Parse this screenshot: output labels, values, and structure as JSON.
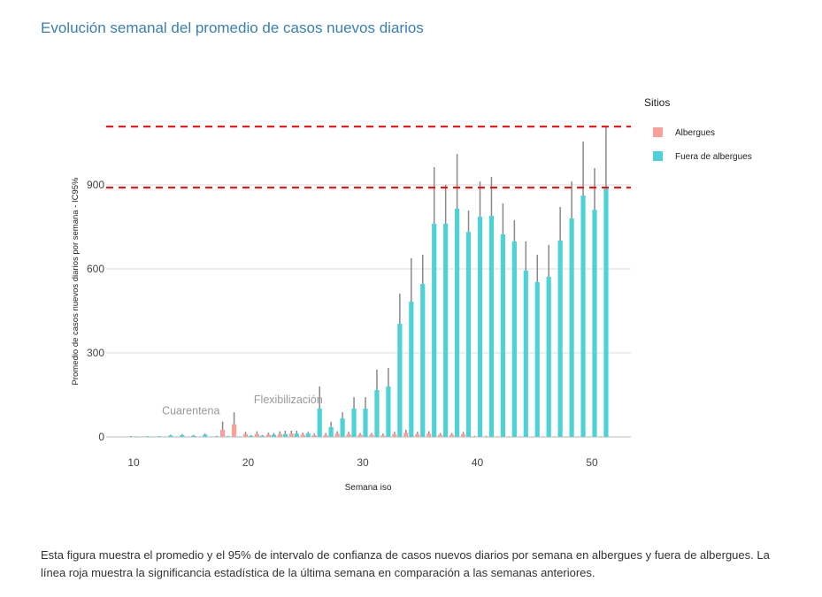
{
  "title": "Evolución semanal del promedio de casos nuevos diarios",
  "caption": "Esta figura muestra el promedio y el 95% de intervalo de confianza de casos nuevos diarios por semana en albergues y fuera de albergues. La línea roja muestra la significancia estadística de la última semana en comparación a las semanas anteriores.",
  "chart_data": {
    "type": "bar",
    "xlabel": "Semana iso",
    "ylabel": "Promedio de casos nuevos diarios por semana - IC95%",
    "xlim": [
      8,
      54
    ],
    "ylim": [
      0,
      1160
    ],
    "xticks": [
      10,
      20,
      30,
      40,
      50
    ],
    "yticks": [
      0,
      300,
      600,
      900
    ],
    "grid": true,
    "legend": {
      "title": "Sitios",
      "placement": "right"
    },
    "reference_lines": [
      1108,
      890
    ],
    "reference_line_color": "#ff0000",
    "annotations": [
      {
        "text": "Cuarentena",
        "x": 15,
        "y": 80
      },
      {
        "text": "Flexibilización",
        "x": 23.5,
        "y": 120
      }
    ],
    "x": [
      10,
      11,
      12,
      13,
      14,
      15,
      16,
      17,
      18,
      19,
      20,
      21,
      22,
      23,
      24,
      25,
      26,
      27,
      28,
      29,
      30,
      31,
      32,
      33,
      34,
      35,
      36,
      37,
      38,
      39,
      40,
      41,
      42,
      43,
      44,
      45,
      46,
      47,
      48,
      49,
      50,
      51
    ],
    "series": [
      {
        "name": "Albergues",
        "color": "#f8a09a",
        "values": [
          0,
          0,
          0,
          0,
          0,
          0,
          0,
          0,
          25,
          45,
          10,
          10,
          8,
          10,
          12,
          8,
          6,
          6,
          12,
          10,
          8,
          8,
          6,
          10,
          15,
          10,
          12,
          8,
          8,
          10,
          2,
          2,
          1,
          1,
          1,
          1,
          1,
          1,
          1,
          1,
          1,
          1
        ],
        "upper": [
          3,
          1,
          1,
          1,
          1,
          1,
          1,
          1,
          55,
          88,
          18,
          20,
          15,
          20,
          22,
          15,
          12,
          14,
          20,
          18,
          14,
          14,
          12,
          18,
          25,
          18,
          20,
          14,
          14,
          18,
          4,
          4,
          2,
          2,
          2,
          2,
          2,
          2,
          2,
          2,
          2,
          2
        ]
      },
      {
        "name": "Fuera de albergues",
        "color": "#4dd2d8",
        "values": [
          1,
          2,
          2,
          5,
          6,
          4,
          8,
          2,
          2,
          1,
          4,
          4,
          8,
          10,
          12,
          12,
          101,
          35,
          66,
          101,
          101,
          167,
          180,
          404,
          483,
          546,
          761,
          761,
          815,
          732,
          786,
          789,
          723,
          698,
          594,
          553,
          572,
          701,
          780,
          862,
          811,
          887
        ],
        "upper": [
          2,
          3,
          3,
          8,
          10,
          7,
          12,
          4,
          4,
          2,
          7,
          7,
          14,
          22,
          22,
          18,
          180,
          54,
          88,
          142,
          142,
          240,
          246,
          512,
          638,
          650,
          963,
          900,
          1010,
          808,
          912,
          928,
          834,
          774,
          698,
          650,
          685,
          821,
          912,
          1055,
          960,
          1108
        ]
      }
    ]
  }
}
